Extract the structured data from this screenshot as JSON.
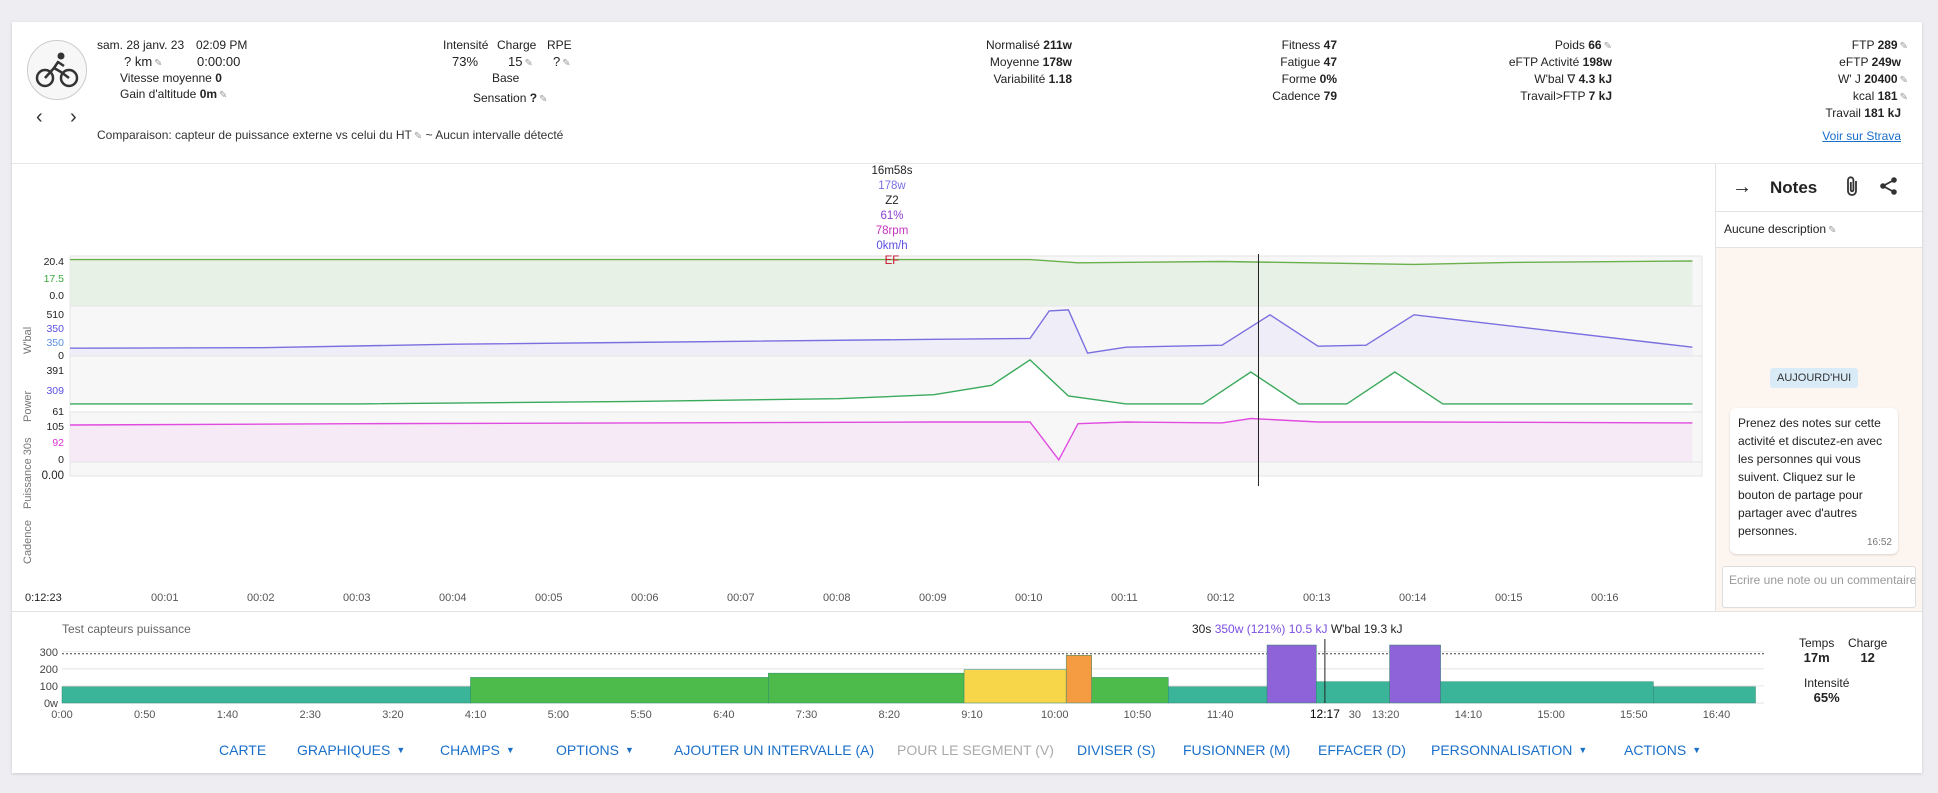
{
  "header": {
    "date": "sam. 28 janv. 23",
    "time": "02:09 PM",
    "distance": "? km",
    "duration": "0:00:00",
    "avg_speed_label": "Vitesse moyenne",
    "avg_speed_value": "0",
    "elevation_label": "Gain d'altitude",
    "elevation_value": "0m",
    "intensity_label": "Intensité",
    "intensity_value": "73%",
    "load_label": "Charge",
    "load_value": "15",
    "rpe_label": "RPE",
    "rpe_value": "?",
    "base_label": "Base",
    "feel_label": "Sensation",
    "feel_value": "?",
    "normalized_label": "Normalisé",
    "normalized_value": "211w",
    "average_label": "Moyenne",
    "average_value": "178w",
    "variability_label": "Variabilité",
    "variability_value": "1.18",
    "fitness_label": "Fitness",
    "fitness_value": "47",
    "fatigue_label": "Fatigue",
    "fatigue_value": "47",
    "form_label": "Forme",
    "form_value": "0%",
    "cadence_label": "Cadence",
    "cadence_value": "79",
    "weight_label": "Poids",
    "weight_value": "66",
    "eftp_act_label": "eFTP Activité",
    "eftp_act_value": "198w",
    "wbal_label": "W'bal ∇",
    "wbal_value": "4.3 kJ",
    "work_ftp_label": "Travail>FTP",
    "work_ftp_value": "7 kJ",
    "ftp_label": "FTP",
    "ftp_value": "289",
    "eftp_label": "eFTP",
    "eftp_value": "249w",
    "wprime_label": "W' J",
    "wprime_value": "20400",
    "kcal_label": "kcal",
    "kcal_value": "181",
    "work_label": "Travail",
    "work_value": "181 kJ",
    "strava_link": "Voir sur Strava",
    "comparison": "Comparaison: capteur de puissance externe vs celui du HT",
    "no_interval": "~ Aucun intervalle détecté"
  },
  "tooltip": {
    "time": "16m58s",
    "power": "178w",
    "zone": "Z2",
    "percent": "61%",
    "cadence": "78rpm",
    "speed": "0km/h",
    "ef": "EF"
  },
  "chart_data": {
    "type": "line",
    "x_unit": "minutes",
    "xticks": [
      "00:01",
      "00:02",
      "00:03",
      "00:04",
      "00:05",
      "00:06",
      "00:07",
      "00:08",
      "00:09",
      "00:10",
      "00:11",
      "00:12",
      "00:13",
      "00:14",
      "00:15",
      "00:16"
    ],
    "cursor_label": "0:12:23",
    "panels": [
      {
        "name": "W'bal",
        "ticks": [
          "20.4",
          "0.0"
        ],
        "marker": "17.5",
        "color": "#6ab04c",
        "x": [
          0,
          10,
          10.5,
          12,
          14,
          15,
          16.9
        ],
        "y": [
          20.4,
          20.4,
          19.0,
          19.6,
          18.3,
          19.2,
          19.8
        ]
      },
      {
        "name": "Power",
        "ticks": [
          "510",
          "0"
        ],
        "marker": "350",
        "marker2": "350",
        "color": "#7b6fe0",
        "x": [
          0,
          2,
          4,
          7,
          9,
          10,
          10.2,
          10.4,
          10.6,
          11,
          12,
          12.5,
          13,
          13.5,
          14,
          16.9
        ],
        "y": [
          80,
          85,
          120,
          150,
          170,
          180,
          460,
          470,
          30,
          90,
          110,
          420,
          100,
          110,
          420,
          90
        ]
      },
      {
        "name": "Puissance 30s",
        "ticks": [
          "391",
          "61"
        ],
        "marker": "309",
        "color": "#3aaa5c",
        "x": [
          0,
          3,
          6,
          8,
          9,
          9.6,
          10,
          10.4,
          11,
          11.8,
          12.3,
          12.8,
          13.3,
          13.8,
          14.3,
          16.9
        ],
        "y": [
          61,
          61,
          80,
          100,
          130,
          200,
          391,
          120,
          61,
          61,
          300,
          61,
          61,
          300,
          61,
          61
        ]
      },
      {
        "name": "Cadence",
        "ticks": [
          "105",
          "0"
        ],
        "marker": "92",
        "color": "#e14ce0",
        "x": [
          0,
          3,
          6,
          9,
          10,
          10.3,
          10.5,
          11,
          12,
          12.3,
          13,
          14,
          16.9
        ],
        "y": [
          85,
          88,
          90,
          92,
          92,
          5,
          88,
          92,
          90,
          100,
          92,
          92,
          90
        ]
      }
    ],
    "bottom_value": "0.00"
  },
  "notes": {
    "title": "Notes",
    "description": "Aucune description",
    "today_badge": "AUJOURD'HUI",
    "message": "Prenez des notes sur cette activité et discutez-en avec les personnes qui vous suivent. Cliquez sur le bouton de partage pour partager avec d'autres personnes.",
    "message_time": "16:52",
    "input_placeholder": "Ecrire une note ou un commentaire..."
  },
  "intervals": {
    "title": "Test capteurs puissance",
    "info_duration": "30s",
    "info_power": "350w (121%)",
    "info_energy": "10.5 kJ",
    "info_wbal": "W'bal 19.3 kJ",
    "yticks": [
      "300",
      "200",
      "100",
      "0w"
    ],
    "xticks": [
      "0:00",
      "0:50",
      "1:40",
      "2:30",
      "3:20",
      "4:10",
      "5:00",
      "5:50",
      "6:40",
      "7:30",
      "8:20",
      "9:10",
      "10:00",
      "10:50",
      "11:40",
      "12:17",
      "30",
      "13:20",
      "14:10",
      "15:00",
      "15:50",
      "16:40"
    ],
    "blocks": [
      {
        "start": 0,
        "end": 240,
        "power": 95,
        "color": "#3bb59a"
      },
      {
        "start": 240,
        "end": 415,
        "power": 150,
        "color": "#4cbb4c"
      },
      {
        "start": 415,
        "end": 530,
        "power": 175,
        "color": "#4cbb4c"
      },
      {
        "start": 530,
        "end": 590,
        "power": 195,
        "color": "#f7d64a"
      },
      {
        "start": 590,
        "end": 605,
        "power": 280,
        "color": "#f59c42"
      },
      {
        "start": 605,
        "end": 650,
        "power": 150,
        "color": "#4cbb4c"
      },
      {
        "start": 650,
        "end": 708,
        "power": 95,
        "color": "#3bb59a"
      },
      {
        "start": 708,
        "end": 737,
        "power": 340,
        "color": "#8e62d9"
      },
      {
        "start": 737,
        "end": 780,
        "power": 125,
        "color": "#3bb59a"
      },
      {
        "start": 780,
        "end": 810,
        "power": 340,
        "color": "#8e62d9"
      },
      {
        "start": 810,
        "end": 935,
        "power": 125,
        "color": "#3bb59a"
      },
      {
        "start": 935,
        "end": 995,
        "power": 95,
        "color": "#3bb59a"
      }
    ],
    "stat_time_label": "Temps",
    "stat_time_value": "17m",
    "stat_load_label": "Charge",
    "stat_load_value": "12",
    "stat_intensity_label": "Intensité",
    "stat_intensity_value": "65%"
  },
  "toolbar": {
    "map": "CARTE",
    "charts": "GRAPHIQUES",
    "fields": "CHAMPS",
    "options": "OPTIONS",
    "add_interval": "AJOUTER UN INTERVALLE (A)",
    "for_segment": "POUR LE SEGMENT (V)",
    "split": "DIVISER (S)",
    "merge": "FUSIONNER (M)",
    "delete": "EFFACER (D)",
    "customize": "PERSONNALISATION",
    "actions": "ACTIONS"
  },
  "colors": {
    "accent": "#1a6fc9",
    "power": "#7b6fe0",
    "wbal": "#6ab04c",
    "cadence": "#e14ce0",
    "ef": "#c8102e"
  }
}
